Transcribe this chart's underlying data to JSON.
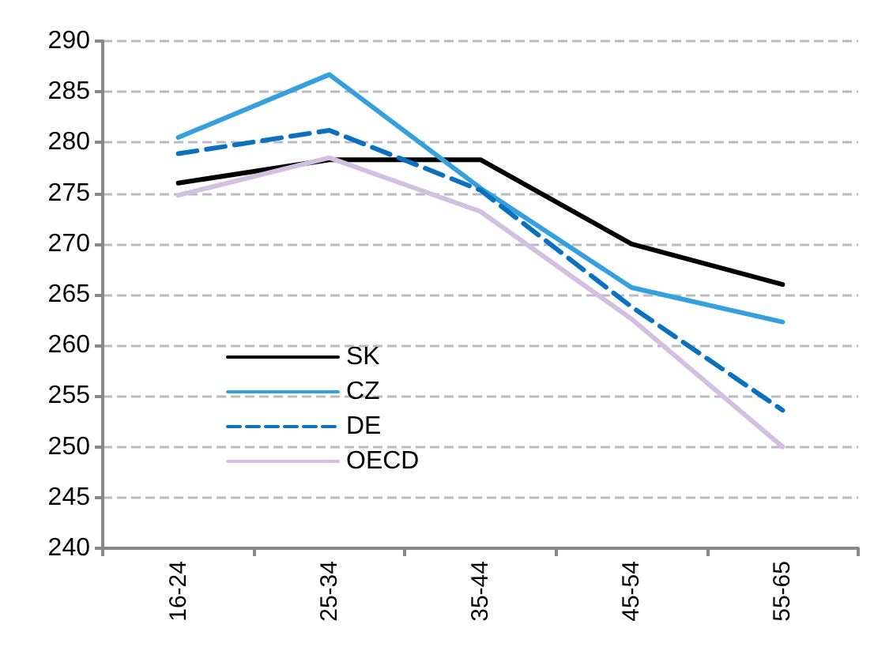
{
  "chart_data": {
    "type": "line",
    "categories": [
      "16-24",
      "25-34",
      "35-44",
      "45-54",
      "55-65"
    ],
    "series": [
      {
        "name": "SK",
        "color": "#000000",
        "values": [
          276,
          278.3,
          278.3,
          270,
          266
        ]
      },
      {
        "name": "CZ",
        "color": "#35a0dd",
        "values": [
          280.5,
          286.7,
          275.5,
          265.7,
          262.3
        ]
      },
      {
        "name": "DE",
        "color": "#0a70c0",
        "values": [
          278.9,
          281.2,
          275.3,
          263.8,
          253.6
        ],
        "line_style": "dashed"
      },
      {
        "name": "OECD",
        "color": "#d5bfe0",
        "values": [
          274.8,
          278.5,
          273.2,
          262.6,
          250
        ]
      }
    ],
    "ylim": [
      240,
      290
    ],
    "yticks": [
      240,
      245,
      250,
      255,
      260,
      265,
      270,
      275,
      280,
      285,
      290
    ],
    "grid": "y",
    "legend": "center left",
    "marker": "none",
    "line_style": "solid"
  }
}
